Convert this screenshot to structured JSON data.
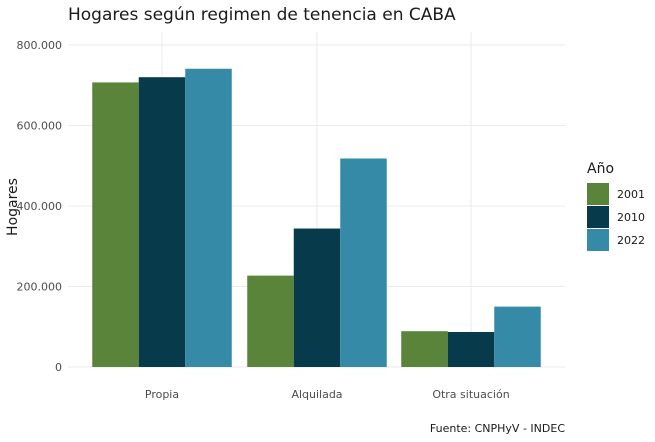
{
  "chart_data": {
    "type": "bar",
    "title": "Hogares según regimen de tenencia en CABA",
    "xlabel": "",
    "ylabel": "Hogares",
    "categories": [
      "Propia",
      "Alquilada",
      "Otra situación"
    ],
    "series": [
      {
        "name": "2001",
        "color": "#5a843a",
        "values": [
          707000,
          227000,
          89000
        ]
      },
      {
        "name": "2010",
        "color": "#073b4c",
        "values": [
          720000,
          344000,
          87000
        ]
      },
      {
        "name": "2022",
        "color": "#348aa7",
        "values": [
          741000,
          518000,
          150000
        ]
      }
    ],
    "ylim": [
      0,
      800000
    ],
    "yticks": [
      0,
      200000,
      400000,
      600000,
      800000
    ],
    "ytick_labels": [
      "0",
      "200.000",
      "400.000",
      "600.000",
      "800.000"
    ],
    "legend_title": "Año",
    "legend_position": "right",
    "grid": true,
    "caption": "Fuente: CNPHyV - INDEC"
  }
}
